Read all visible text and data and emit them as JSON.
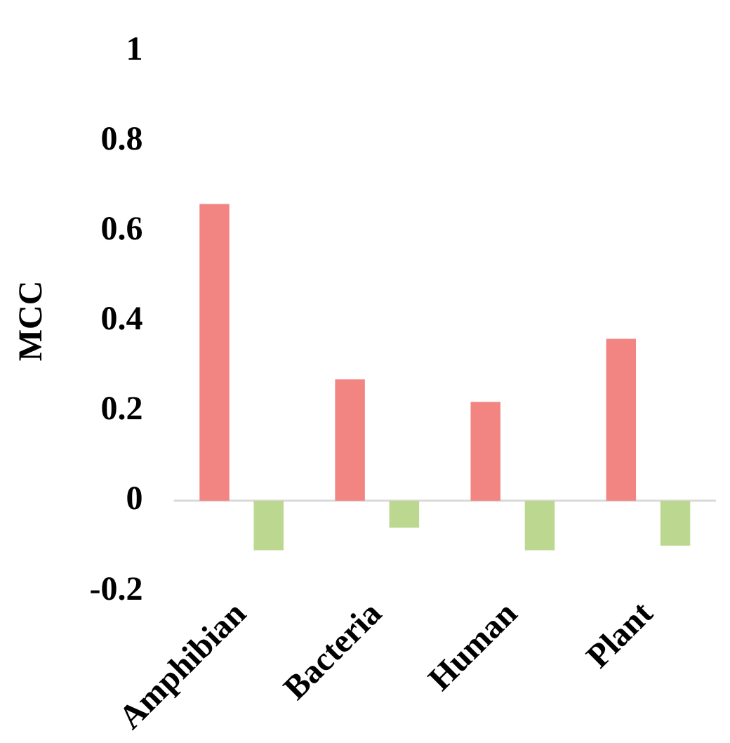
{
  "chart_data": {
    "type": "bar",
    "ylabel": "MCC",
    "categories": [
      "Amphibian",
      "Bacteria",
      "Human",
      "Plant"
    ],
    "series": [
      {
        "color": "#f28482",
        "values": [
          0.66,
          0.27,
          0.22,
          0.36
        ]
      },
      {
        "color": "#bcd78f",
        "values": [
          -0.11,
          -0.06,
          -0.11,
          -0.1
        ]
      }
    ],
    "ylim": [
      -0.2,
      1
    ],
    "yticks": [
      -0.2,
      0,
      0.2,
      0.4,
      0.6,
      0.8,
      1
    ],
    "grid": false,
    "ref_lines": [
      {
        "axis": "y",
        "value": 0,
        "color": "#d9d9d9"
      }
    ]
  }
}
